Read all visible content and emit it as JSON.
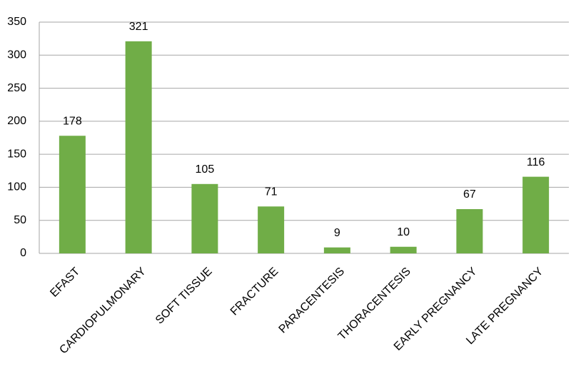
{
  "chart_data": {
    "type": "bar",
    "categories": [
      "EFAST",
      "CARDIOPULMONARY",
      "SOFT TISSUE",
      "FRACTURE",
      "PARACENTESIS",
      "THORACENTESIS",
      "EARLY PREGNANCY",
      "LATE PREGNANCY"
    ],
    "values": [
      178,
      321,
      105,
      71,
      9,
      10,
      67,
      116
    ],
    "color": "#70ad47",
    "ylim": [
      0,
      350
    ],
    "yticks": [
      0,
      50,
      100,
      150,
      200,
      250,
      300,
      350
    ],
    "grid": true
  }
}
